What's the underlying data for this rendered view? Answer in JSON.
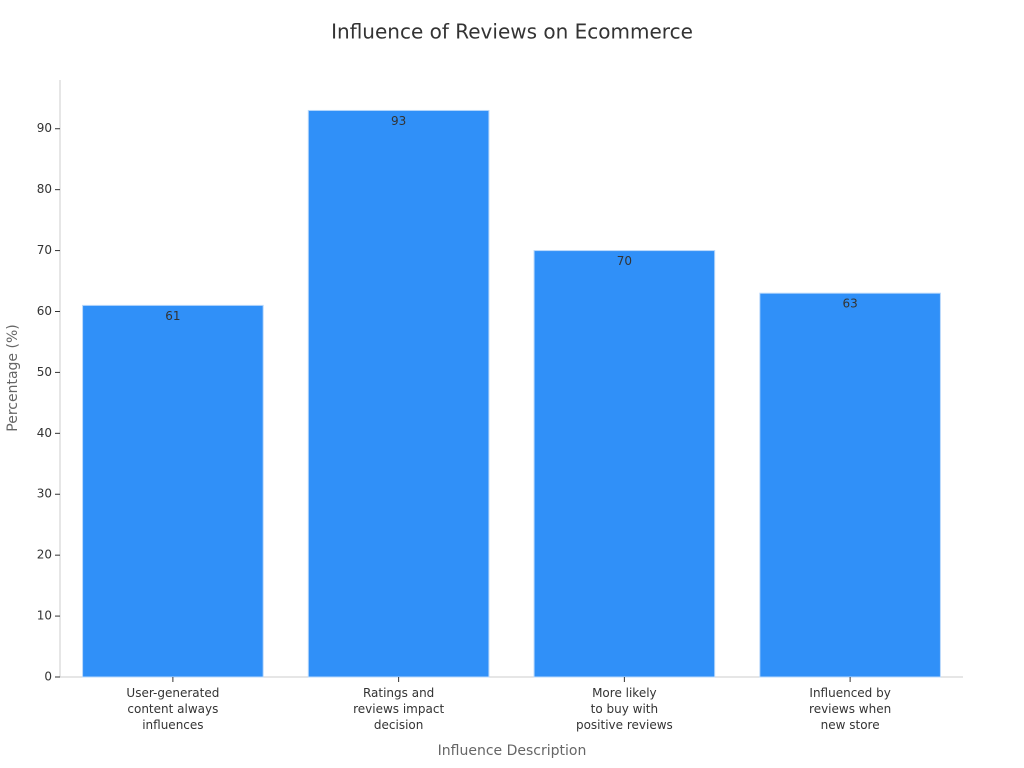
{
  "chart_data": {
    "type": "bar",
    "title": "Influence of Reviews on Ecommerce",
    "x_label": "Influence Description",
    "y_label": "Percentage (%)",
    "categories": [
      "User-generated\ncontent always\ninfluences",
      "Ratings and\nreviews impact\ndecision",
      "More likely\nto buy with\npositive reviews",
      "Influenced by\nreviews when\nnew store"
    ],
    "values": [
      61,
      93,
      70,
      63
    ],
    "color": "#3090f8",
    "ylim": [
      0,
      98
    ],
    "yticks": [
      0,
      10,
      20,
      30,
      40,
      50,
      60,
      70,
      80,
      90
    ]
  }
}
